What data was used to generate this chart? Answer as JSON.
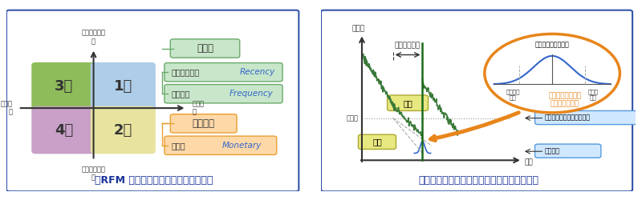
{
  "left_panel": {
    "title": "【RFM 分析による商品特性の可視化】",
    "quad_colors": [
      "#8fbc5a",
      "#aecde8",
      "#c9a0c8",
      "#e8e4a0"
    ],
    "quad_labels": [
      "3類",
      "1類",
      "4類",
      "2類"
    ],
    "green_box_color": "#c8e6c9",
    "green_border": "#6aaa6a",
    "orange_box_color": "#ffd8a8",
    "orange_border": "#e8a030",
    "recency_en": "Recency",
    "frequency_en": "Frequency",
    "monetary_en": "Monetary",
    "text_blue": "#3366cc"
  },
  "right_panel": {
    "title": "【統計分布を用いた安全在庫・発注点算出】",
    "circle_color": "#e8851a",
    "inventory_line_color": "#3a7a3a",
    "normal_curve_color": "#3366cc",
    "label_box_bg": "#d0e8ff",
    "label_box_border": "#5599dd",
    "nohhin_bg": "#e8e880",
    "nohhin_border": "#aaa830"
  },
  "border_color": "#3355aa",
  "bg_color": "#ffffff",
  "title_color": "#1a3399"
}
